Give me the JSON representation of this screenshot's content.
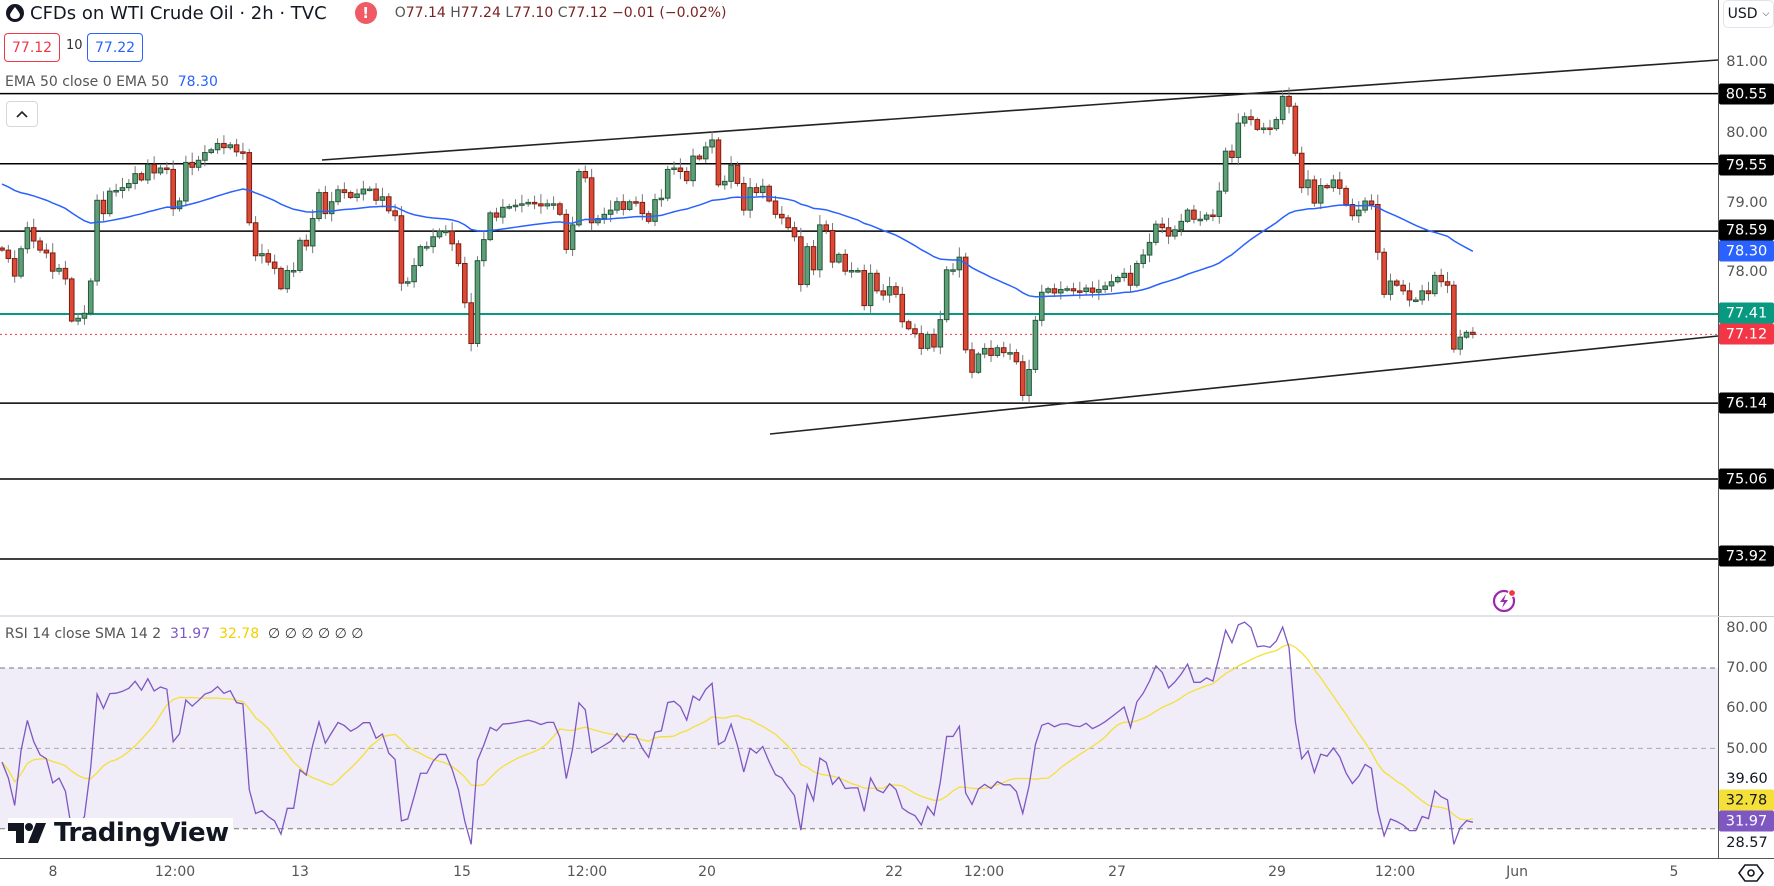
{
  "header": {
    "symbol_title": "CFDs on WTI Crude Oil · 2h · TVC",
    "ohlc": {
      "o_label": "O",
      "o": "77.14",
      "h_label": "H",
      "h": "77.24",
      "l_label": "L",
      "l": "77.10",
      "c_label": "C",
      "c": "77.12",
      "change": "−0.01 (−0.02%)"
    },
    "sell_price": "77.12",
    "spread": "10",
    "buy_price": "77.22",
    "ema_legend": "EMA 50 close 0 EMA 50",
    "ema_value": "78.30",
    "currency": "USD"
  },
  "rsi_legend": {
    "label": "RSI 14 close SMA 14 2",
    "rsi_value": "31.97",
    "sma_value": "32.78",
    "extra": "∅  ∅  ∅  ∅  ∅  ∅"
  },
  "colors": {
    "up": "#5e9e78",
    "down": "#dc4a36",
    "ema": "#2962ff",
    "support": "#089981",
    "price": "#f23645",
    "rsi": "#7e57c2",
    "rsi_sma": "#f5e03a"
  },
  "chart_data": [
    {
      "type": "candlestick",
      "x_ticks": [
        "8",
        "12:00",
        "13",
        "15",
        "12:00",
        "20",
        "22",
        "12:00",
        "27",
        "29",
        "12:00",
        "Jun",
        "5"
      ],
      "y_ticks": [
        "81.00",
        "80.00",
        "79.00",
        "78.00"
      ],
      "ylim": [
        73.6,
        81.9
      ],
      "close": [
        78.32,
        78.2,
        77.95,
        78.34,
        78.64,
        78.45,
        78.32,
        78.28,
        78.02,
        78.06,
        77.91,
        77.31,
        77.35,
        77.42,
        77.88,
        79.03,
        78.84,
        79.16,
        79.17,
        79.21,
        79.27,
        79.41,
        79.32,
        79.54,
        79.42,
        79.49,
        79.47,
        78.91,
        79.02,
        79.57,
        79.5,
        79.6,
        79.71,
        79.75,
        79.84,
        79.78,
        79.82,
        79.72,
        79.71,
        78.71,
        78.24,
        78.27,
        78.15,
        78.06,
        77.77,
        78.03,
        78.03,
        78.46,
        78.38,
        78.77,
        79.14,
        78.84,
        79.01,
        79.18,
        79.14,
        79.07,
        79.12,
        79.19,
        79.19,
        79.03,
        79.08,
        78.88,
        78.81,
        77.85,
        77.87,
        78.1,
        78.37,
        78.37,
        78.51,
        78.59,
        78.59,
        78.41,
        78.13,
        77.57,
        76.99,
        78.17,
        78.47,
        78.85,
        78.79,
        78.93,
        78.94,
        78.96,
        78.98,
        79.0,
        78.98,
        78.95,
        78.98,
        78.98,
        78.83,
        78.33,
        78.68,
        79.44,
        79.35,
        78.71,
        78.77,
        78.83,
        78.89,
        79.01,
        78.9,
        79.01,
        79.0,
        78.84,
        78.73,
        79.04,
        79.06,
        79.47,
        79.49,
        79.44,
        79.31,
        79.66,
        79.62,
        79.79,
        79.89,
        79.25,
        79.3,
        79.53,
        79.27,
        78.89,
        79.21,
        79.14,
        79.23,
        79.02,
        78.83,
        78.78,
        78.64,
        78.51,
        77.83,
        78.37,
        78.04,
        78.68,
        78.6,
        78.15,
        78.26,
        78.02,
        78.03,
        78.03,
        77.53,
        77.99,
        77.74,
        77.68,
        77.8,
        77.69,
        77.3,
        77.2,
        77.13,
        76.92,
        77.12,
        76.94,
        77.33,
        78.04,
        78.04,
        78.22,
        76.9,
        76.58,
        76.84,
        76.92,
        76.82,
        76.93,
        76.86,
        76.86,
        76.73,
        76.25,
        76.62,
        77.32,
        77.72,
        77.77,
        77.71,
        77.76,
        77.77,
        77.74,
        77.73,
        77.78,
        77.72,
        77.76,
        77.81,
        77.87,
        77.93,
        77.99,
        77.82,
        78.13,
        78.25,
        78.43,
        78.69,
        78.64,
        78.52,
        78.61,
        78.73,
        78.89,
        78.76,
        78.76,
        78.82,
        78.8,
        79.16,
        79.73,
        79.64,
        80.13,
        80.22,
        80.18,
        80.04,
        80.06,
        80.05,
        80.18,
        80.51,
        80.37,
        79.7,
        79.21,
        79.32,
        78.99,
        79.24,
        79.21,
        79.32,
        79.2,
        78.97,
        78.81,
        78.89,
        79.02,
        78.97,
        78.29,
        77.69,
        77.88,
        77.82,
        77.74,
        77.61,
        77.61,
        77.74,
        77.7,
        77.96,
        77.87,
        77.82,
        76.91,
        77.08,
        77.15,
        77.12
      ],
      "current_price": 77.12,
      "ema_period": 50,
      "horizontal_levels": [
        {
          "value": "80.55",
          "kind": "resistance"
        },
        {
          "value": "79.55",
          "kind": "resistance"
        },
        {
          "value": "78.59",
          "kind": "resistance"
        },
        {
          "value": "77.41",
          "kind": "pivot"
        },
        {
          "value": "76.14",
          "kind": "support"
        },
        {
          "value": "75.06",
          "kind": "support"
        },
        {
          "value": "73.92",
          "kind": "support"
        }
      ],
      "ema_tag": "78.30",
      "price_tag": "77.12",
      "grid": false
    },
    {
      "type": "line",
      "y_ticks": [
        "80.00",
        "70.00",
        "60.00",
        "50.00"
      ],
      "ylim": [
        26,
        83
      ],
      "bands": [
        70,
        50,
        30
      ],
      "tags": {
        "high": "39.60",
        "sma": "32.78",
        "rsi": "31.97",
        "low": "28.57"
      }
    }
  ]
}
